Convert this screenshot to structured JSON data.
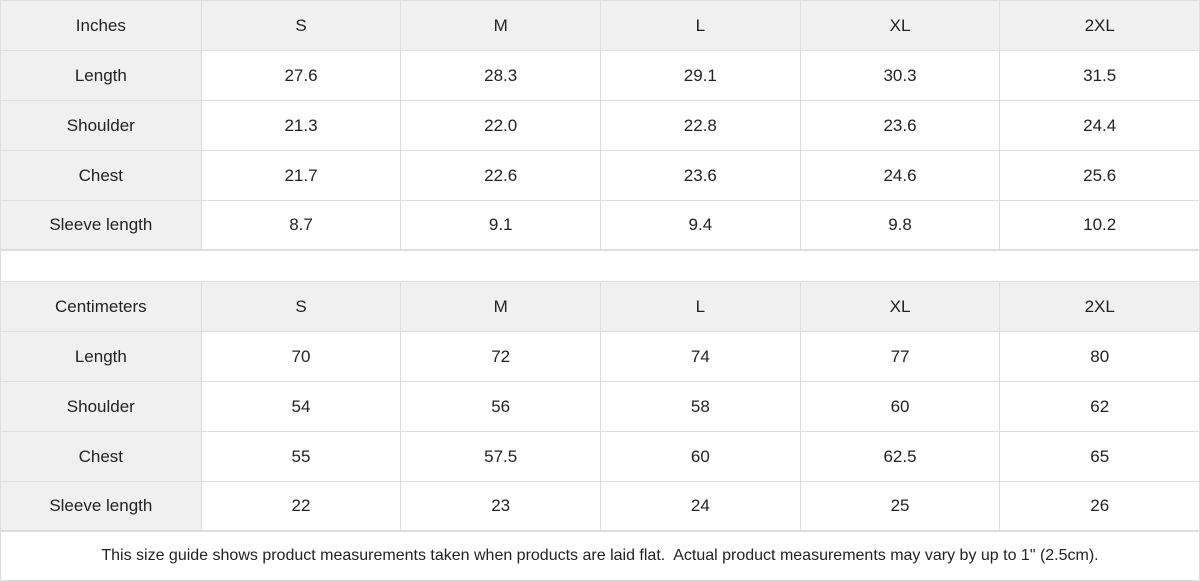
{
  "tables": [
    {
      "header": [
        "Inches",
        "S",
        "M",
        "L",
        "XL",
        "2XL"
      ],
      "rows": [
        [
          "Length",
          "27.6",
          "28.3",
          "29.1",
          "30.3",
          "31.5"
        ],
        [
          "Shoulder",
          "21.3",
          "22.0",
          "22.8",
          "23.6",
          "24.4"
        ],
        [
          "Chest",
          "21.7",
          "22.6",
          "23.6",
          "24.6",
          "25.6"
        ],
        [
          "Sleeve length",
          "8.7",
          "9.1",
          "9.4",
          "9.8",
          "10.2"
        ]
      ]
    },
    {
      "header": [
        "Centimeters",
        "S",
        "M",
        "L",
        "XL",
        "2XL"
      ],
      "rows": [
        [
          "Length",
          "70",
          "72",
          "74",
          "77",
          "80"
        ],
        [
          "Shoulder",
          "54",
          "56",
          "58",
          "60",
          "62"
        ],
        [
          "Chest",
          "55",
          "57.5",
          "60",
          "62.5",
          "65"
        ],
        [
          "Sleeve length",
          "22",
          "23",
          "24",
          "25",
          "26"
        ]
      ]
    }
  ],
  "note": "This size guide shows product measurements taken when products are laid flat.  Actual product measurements may vary by up to 1\" (2.5cm)."
}
